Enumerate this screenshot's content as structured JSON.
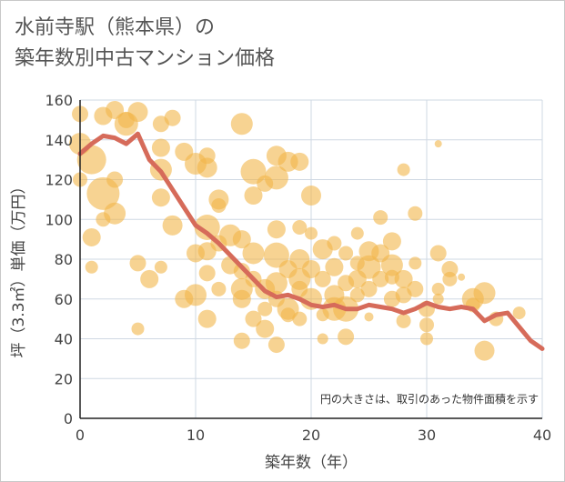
{
  "chart_data": {
    "type": "scatter",
    "title": "水前寺駅（熊本県）の\n築年数別中古マンション価格",
    "xlabel": "築年数（年）",
    "ylabel": "坪（3.3㎡）単価（万円）",
    "note": "円の大きさは、取引のあった物件面積を示す",
    "xlim": [
      0,
      40
    ],
    "ylim": [
      0,
      160
    ],
    "xticks": [
      "0",
      "10",
      "20",
      "30",
      "40"
    ],
    "yticks": [
      "0",
      "20",
      "40",
      "60",
      "80",
      "100",
      "120",
      "140",
      "160"
    ],
    "grid": true,
    "colors": {
      "bubble": "#f2b54a",
      "line": "#d66b5a"
    },
    "bubbles": [
      [
        0,
        153,
        9
      ],
      [
        0,
        138,
        12
      ],
      [
        0,
        120,
        8
      ],
      [
        1,
        130,
        16
      ],
      [
        1,
        91,
        10
      ],
      [
        1,
        76,
        7
      ],
      [
        2,
        113,
        18
      ],
      [
        2,
        100,
        8
      ],
      [
        2,
        152,
        10
      ],
      [
        3,
        103,
        12
      ],
      [
        3,
        120,
        9
      ],
      [
        3,
        155,
        10
      ],
      [
        4,
        148,
        13
      ],
      [
        4,
        150,
        9
      ],
      [
        5,
        154,
        11
      ],
      [
        5,
        78,
        9
      ],
      [
        5,
        45,
        7
      ],
      [
        6,
        70,
        10
      ],
      [
        7,
        148,
        9
      ],
      [
        7,
        136,
        10
      ],
      [
        7,
        125,
        12
      ],
      [
        7,
        111,
        10
      ],
      [
        7,
        76,
        7
      ],
      [
        8,
        151,
        9
      ],
      [
        8,
        97,
        11
      ],
      [
        9,
        134,
        10
      ],
      [
        9,
        60,
        10
      ],
      [
        10,
        128,
        12
      ],
      [
        10,
        83,
        10
      ],
      [
        10,
        62,
        12
      ],
      [
        11,
        132,
        9
      ],
      [
        11,
        126,
        11
      ],
      [
        11,
        96,
        14
      ],
      [
        11,
        84,
        10
      ],
      [
        11,
        73,
        9
      ],
      [
        11,
        50,
        10
      ],
      [
        12,
        110,
        11
      ],
      [
        12,
        107,
        8
      ],
      [
        12,
        88,
        9
      ],
      [
        12,
        65,
        8
      ],
      [
        13,
        92,
        12
      ],
      [
        13,
        77,
        10
      ],
      [
        14,
        148,
        12
      ],
      [
        14,
        90,
        10
      ],
      [
        14,
        74,
        9
      ],
      [
        14,
        65,
        12
      ],
      [
        14,
        60,
        10
      ],
      [
        14,
        39,
        9
      ],
      [
        15,
        124,
        14
      ],
      [
        15,
        112,
        10
      ],
      [
        15,
        83,
        12
      ],
      [
        15,
        70,
        9
      ],
      [
        15,
        50,
        9
      ],
      [
        16,
        118,
        9
      ],
      [
        16,
        65,
        11
      ],
      [
        16,
        55,
        8
      ],
      [
        16,
        45,
        10
      ],
      [
        17,
        132,
        11
      ],
      [
        17,
        121,
        13
      ],
      [
        17,
        95,
        10
      ],
      [
        17,
        82,
        14
      ],
      [
        17,
        68,
        12
      ],
      [
        17,
        60,
        9
      ],
      [
        17,
        37,
        9
      ],
      [
        18,
        129,
        11
      ],
      [
        18,
        75,
        10
      ],
      [
        18,
        55,
        12
      ],
      [
        18,
        52,
        8
      ],
      [
        19,
        129,
        10
      ],
      [
        19,
        96,
        8
      ],
      [
        19,
        80,
        11
      ],
      [
        19,
        70,
        12
      ],
      [
        19,
        65,
        9
      ],
      [
        19,
        50,
        8
      ],
      [
        20,
        112,
        11
      ],
      [
        20,
        93,
        7
      ],
      [
        20,
        75,
        10
      ],
      [
        20,
        60,
        12
      ],
      [
        21,
        85,
        11
      ],
      [
        21,
        70,
        9
      ],
      [
        21,
        52,
        7
      ],
      [
        21,
        40,
        6
      ],
      [
        22,
        88,
        8
      ],
      [
        22,
        76,
        10
      ],
      [
        22,
        62,
        11
      ],
      [
        22,
        55,
        13
      ],
      [
        23,
        83,
        8
      ],
      [
        23,
        68,
        9
      ],
      [
        23,
        55,
        14
      ],
      [
        23,
        41,
        9
      ],
      [
        24,
        93,
        7
      ],
      [
        24,
        78,
        8
      ],
      [
        24,
        70,
        10
      ],
      [
        24,
        62,
        8
      ],
      [
        25,
        84,
        11
      ],
      [
        25,
        76,
        13
      ],
      [
        25,
        65,
        9
      ],
      [
        25,
        51,
        5
      ],
      [
        26,
        101,
        8
      ],
      [
        26,
        83,
        10
      ],
      [
        26,
        70,
        9
      ],
      [
        27,
        89,
        10
      ],
      [
        27,
        77,
        12
      ],
      [
        27,
        71,
        8
      ],
      [
        27,
        60,
        9
      ],
      [
        28,
        125,
        7
      ],
      [
        28,
        70,
        10
      ],
      [
        28,
        62,
        9
      ],
      [
        28,
        49,
        8
      ],
      [
        29,
        103,
        8
      ],
      [
        29,
        78,
        7
      ],
      [
        29,
        65,
        9
      ],
      [
        30,
        55,
        9
      ],
      [
        30,
        47,
        8
      ],
      [
        30,
        40,
        7
      ],
      [
        31,
        138,
        4
      ],
      [
        31,
        83,
        9
      ],
      [
        31,
        65,
        7
      ],
      [
        31,
        60,
        6
      ],
      [
        32,
        75,
        9
      ],
      [
        32,
        70,
        8
      ],
      [
        33,
        71,
        4
      ],
      [
        34,
        60,
        12
      ],
      [
        34,
        57,
        8
      ],
      [
        35,
        63,
        12
      ],
      [
        35,
        34,
        11
      ],
      [
        36,
        50,
        8
      ],
      [
        38,
        53,
        7
      ]
    ],
    "line": {
      "x": [
        0,
        1,
        2,
        3,
        4,
        5,
        6,
        7,
        8,
        9,
        10,
        11,
        12,
        13,
        14,
        15,
        16,
        17,
        18,
        19,
        20,
        21,
        22,
        23,
        24,
        25,
        26,
        27,
        28,
        29,
        30,
        31,
        32,
        33,
        34,
        35,
        36,
        37,
        38,
        39,
        40
      ],
      "y": [
        133,
        138,
        142,
        141,
        138,
        143,
        130,
        124,
        115,
        106,
        97,
        93,
        88,
        82,
        76,
        70,
        64,
        61,
        62,
        60,
        57,
        56,
        57,
        55,
        55,
        57,
        56,
        55,
        53,
        55,
        58,
        56,
        55,
        56,
        55,
        49,
        52,
        53,
        46,
        39,
        35
      ]
    }
  }
}
